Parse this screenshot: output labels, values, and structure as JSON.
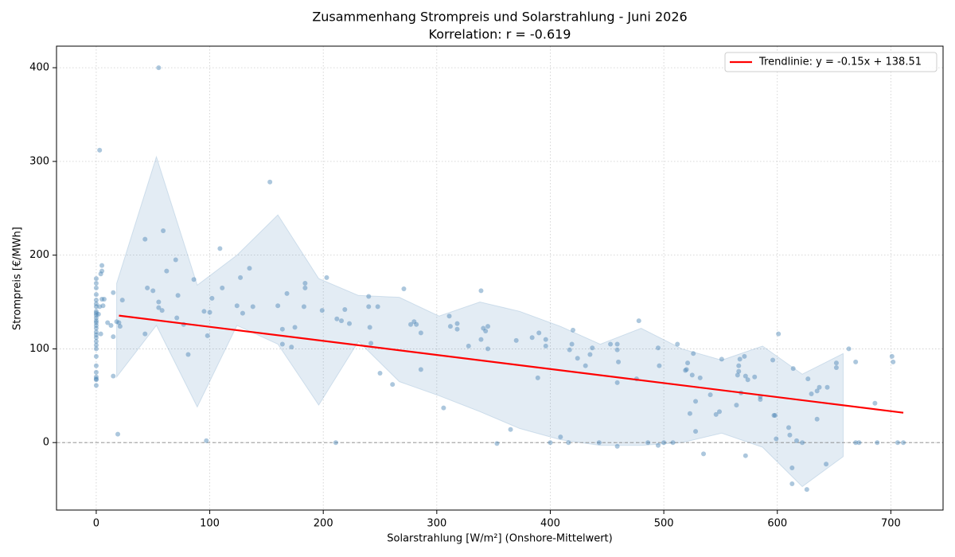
{
  "chart_data": {
    "type": "scatter",
    "title": "Zusammenhang Strompreis und Solarstrahlung - Juni 2026",
    "subtitle": "Korrelation: r = -0.619",
    "xlabel": "Solarstrahlung [W/m²] (Onshore-Mittelwert)",
    "ylabel": "Strompreis [€/MWh]",
    "xlim": [
      -35,
      746
    ],
    "ylim": [
      -72,
      423
    ],
    "xticks": [
      0,
      100,
      200,
      300,
      400,
      500,
      600,
      700
    ],
    "yticks": [
      0,
      100,
      200,
      300,
      400
    ],
    "grid": true,
    "legend": "upper right",
    "hline": 0,
    "points": {
      "color": "#4682b4",
      "x": [
        0,
        0,
        0,
        0,
        0,
        0,
        0,
        0,
        0,
        0,
        0,
        0,
        0,
        0,
        0,
        0,
        0,
        0,
        0,
        0,
        0,
        0,
        0,
        0,
        0,
        0,
        0,
        0,
        3,
        2,
        4,
        3,
        5,
        5,
        4,
        5,
        6,
        7,
        10,
        13,
        15,
        15,
        15,
        19,
        18,
        20,
        21,
        23,
        43,
        43,
        45,
        50,
        55,
        55,
        55,
        58,
        59,
        62,
        70,
        71,
        72,
        77,
        81,
        86,
        95,
        97,
        98,
        100,
        102,
        109,
        111,
        124,
        127,
        129,
        135,
        138,
        153,
        160,
        164,
        164,
        168,
        172,
        175,
        183,
        184,
        184,
        199,
        203,
        211,
        212,
        216,
        219,
        223,
        240,
        240,
        241,
        242,
        248,
        250,
        261,
        271,
        277,
        280,
        282,
        286,
        286,
        306,
        311,
        312,
        318,
        318,
        328,
        339,
        339,
        341,
        343,
        345,
        345,
        353,
        365,
        370,
        384,
        389,
        390,
        396,
        396,
        400,
        409,
        416,
        417,
        419,
        420,
        424,
        431,
        435,
        437,
        443,
        453,
        459,
        459,
        459,
        459,
        460,
        476,
        478,
        486,
        495,
        495,
        496,
        500,
        508,
        512,
        519,
        520,
        521,
        523,
        525,
        526,
        528,
        528,
        532,
        535,
        541,
        546,
        549,
        551,
        564,
        565,
        566,
        566,
        567,
        568,
        571,
        572,
        572,
        574,
        580,
        585,
        585,
        596,
        597,
        598,
        599,
        601,
        610,
        611,
        613,
        613,
        614,
        617,
        622,
        626,
        627,
        630,
        635,
        635,
        637,
        643,
        644,
        652,
        652,
        663,
        669,
        669,
        672,
        686,
        688,
        701,
        702,
        706,
        711
      ],
      "values": [
        61,
        67,
        70,
        75,
        82,
        92,
        100,
        108,
        112,
        115,
        118,
        122,
        125,
        128,
        130,
        133,
        136,
        140,
        145,
        148,
        152,
        158,
        165,
        170,
        175,
        68,
        104,
        138,
        312,
        137,
        116,
        145,
        153,
        183,
        180,
        189,
        146,
        153,
        128,
        125,
        160,
        113,
        71,
        9,
        129,
        128,
        124,
        152,
        217,
        116,
        165,
        162,
        400,
        150,
        144,
        141,
        226,
        183,
        195,
        133,
        157,
        126,
        94,
        174,
        140,
        2,
        114,
        139,
        154,
        207,
        165,
        146,
        176,
        138,
        186,
        145,
        278,
        146,
        121,
        105,
        159,
        102,
        123,
        145,
        170,
        165,
        141,
        176,
        0,
        132,
        130,
        142,
        127,
        156,
        145,
        123,
        106,
        145,
        74,
        62,
        164,
        126,
        129,
        126,
        117,
        78,
        37,
        135,
        124,
        127,
        121,
        103,
        162,
        110,
        122,
        119,
        124,
        100,
        -1,
        14,
        109,
        112,
        69,
        117,
        103,
        110,
        0,
        6,
        0,
        99,
        105,
        120,
        90,
        82,
        94,
        101,
        0,
        105,
        105,
        99,
        64,
        -4,
        86,
        68,
        130,
        0,
        101,
        -3,
        82,
        0,
        0,
        105,
        77,
        78,
        85,
        31,
        72,
        95,
        12,
        44,
        69,
        -12,
        51,
        30,
        33,
        89,
        40,
        72,
        82,
        76,
        89,
        53,
        92,
        -14,
        71,
        67,
        70,
        46,
        49,
        88,
        29,
        29,
        4,
        116,
        16,
        8,
        -27,
        -44,
        79,
        2,
        0,
        -50,
        68,
        52,
        25,
        55,
        59,
        -23,
        59,
        80,
        85,
        100,
        0,
        86,
        0,
        42,
        0,
        92,
        86,
        0,
        0
      ]
    },
    "band": {
      "color": "#4682b4",
      "x": [
        18,
        53,
        89,
        124,
        160,
        196,
        231,
        267,
        302,
        338,
        373,
        409,
        444,
        480,
        516,
        551,
        587,
        622,
        658
      ],
      "upper": [
        170,
        305,
        168,
        200,
        243,
        175,
        157,
        155,
        135,
        150,
        140,
        124,
        105,
        122,
        100,
        88,
        103,
        73,
        95
      ],
      "lower": [
        70,
        125,
        38,
        125,
        105,
        40,
        108,
        65,
        50,
        33,
        15,
        3,
        -3,
        -3,
        0,
        10,
        -5,
        -47,
        -15
      ]
    },
    "trendline": {
      "name": "Trendlinie: y = -0.15x + 138.51",
      "color": "#ff0000",
      "x": [
        20,
        711
      ],
      "values": [
        135.51,
        31.86
      ]
    }
  }
}
